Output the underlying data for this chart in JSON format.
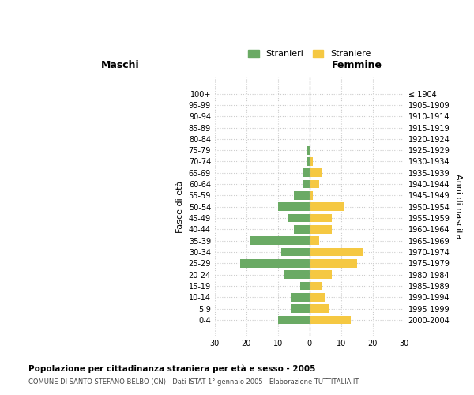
{
  "age_groups": [
    "0-4",
    "5-9",
    "10-14",
    "15-19",
    "20-24",
    "25-29",
    "30-34",
    "35-39",
    "40-44",
    "45-49",
    "50-54",
    "55-59",
    "60-64",
    "65-69",
    "70-74",
    "75-79",
    "80-84",
    "85-89",
    "90-94",
    "95-99",
    "100+"
  ],
  "birth_years": [
    "2000-2004",
    "1995-1999",
    "1990-1994",
    "1985-1989",
    "1980-1984",
    "1975-1979",
    "1970-1974",
    "1965-1969",
    "1960-1964",
    "1955-1959",
    "1950-1954",
    "1945-1949",
    "1940-1944",
    "1935-1939",
    "1930-1934",
    "1925-1929",
    "1920-1924",
    "1915-1919",
    "1910-1914",
    "1905-1909",
    "≤ 1904"
  ],
  "males": [
    10,
    6,
    6,
    3,
    8,
    22,
    9,
    19,
    5,
    7,
    10,
    5,
    2,
    2,
    1,
    1,
    0,
    0,
    0,
    0,
    0
  ],
  "females": [
    13,
    6,
    5,
    4,
    7,
    15,
    17,
    3,
    7,
    7,
    11,
    1,
    3,
    4,
    1,
    0,
    0,
    0,
    0,
    0,
    0
  ],
  "male_color": "#6aaa64",
  "female_color": "#f5c842",
  "xlim": 30,
  "title_main": "Popolazione per cittadinanza straniera per età e sesso - 2005",
  "title_sub": "COMUNE DI SANTO STEFANO BELBO (CN) - Dati ISTAT 1° gennaio 2005 - Elaborazione TUTTITALIA.IT",
  "xlabel_left": "Maschi",
  "xlabel_right": "Femmine",
  "ylabel_left": "Fasce di età",
  "ylabel_right": "Anni di nascita",
  "legend_male": "Stranieri",
  "legend_female": "Straniere",
  "background_color": "#ffffff",
  "grid_color": "#cccccc"
}
